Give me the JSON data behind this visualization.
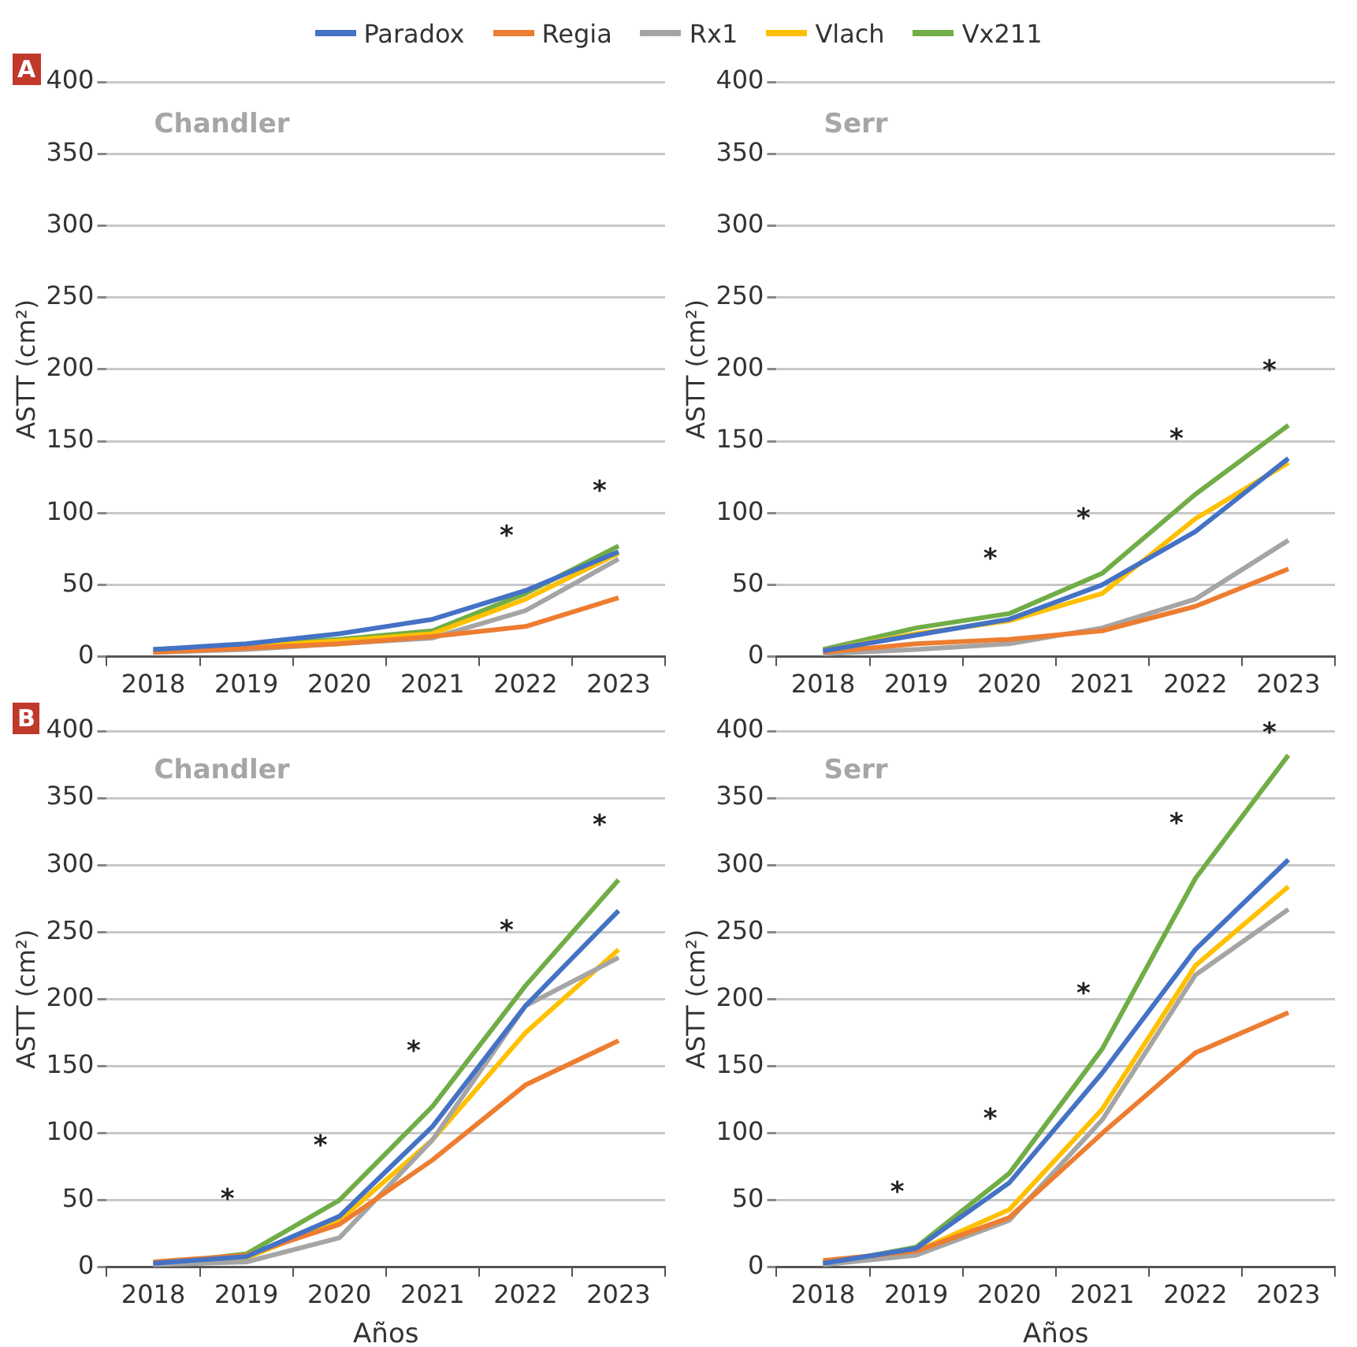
{
  "chart_data": [
    {
      "type": "line",
      "title": "Chandler",
      "subtitle": "A",
      "ylabel": "ASTT (cm²)",
      "categories": [
        "2018",
        "2019",
        "2020",
        "2021",
        "2022",
        "2023"
      ],
      "ylim": [
        0,
        400
      ],
      "yticks": [
        0,
        50,
        100,
        150,
        200,
        250,
        300,
        350,
        400
      ],
      "grid": "y",
      "legend": "top",
      "marker": "none",
      "annotations": [
        "*",
        "*"
      ],
      "series": [
        {
          "name": "Paradox",
          "color": "#4472c4",
          "values": [
            5,
            9,
            16,
            26,
            46,
            73
          ]
        },
        {
          "name": "Regia",
          "color": "#ed7d31",
          "values": [
            3,
            6,
            9,
            14,
            21,
            41
          ]
        },
        {
          "name": "Rx1",
          "color": "#a5a5a5",
          "values": [
            3,
            5,
            9,
            13,
            32,
            68
          ]
        },
        {
          "name": "Vlach",
          "color": "#ffc000",
          "values": [
            4,
            7,
            11,
            16,
            40,
            72
          ]
        },
        {
          "name": "Vx211",
          "color": "#70ad47",
          "values": [
            5,
            8,
            12,
            18,
            44,
            77
          ]
        }
      ]
    },
    {
      "type": "line",
      "title": "Serr",
      "ylabel": "ASTT (cm²)",
      "categories": [
        "2018",
        "2019",
        "2020",
        "2021",
        "2022",
        "2023"
      ],
      "ylim": [
        0,
        400
      ],
      "yticks": [
        0,
        50,
        100,
        150,
        200,
        250,
        300,
        350,
        400
      ],
      "grid": "y",
      "marker": "none",
      "annotations": [
        "*",
        "*",
        "*",
        "*"
      ],
      "series": [
        {
          "color": "#4472c4",
          "values": [
            4,
            15,
            26,
            50,
            87,
            138
          ]
        },
        {
          "color": "#ed7d31",
          "values": [
            3,
            9,
            12,
            18,
            35,
            61
          ]
        },
        {
          "color": "#a5a5a5",
          "values": [
            2,
            5,
            9,
            20,
            40,
            81
          ]
        },
        {
          "color": "#ffc000",
          "values": [
            4,
            16,
            25,
            44,
            96,
            135
          ]
        },
        {
          "color": "#70ad47",
          "values": [
            5,
            20,
            30,
            58,
            113,
            161
          ]
        }
      ]
    },
    {
      "type": "line",
      "title": "Chandler",
      "subtitle": "B",
      "xlabel": "Años",
      "ylabel": "ASTT (cm²)",
      "categories": [
        "2018",
        "2019",
        "2020",
        "2021",
        "2022",
        "2023"
      ],
      "ylim": [
        0,
        400
      ],
      "yticks": [
        0,
        50,
        100,
        150,
        200,
        250,
        300,
        350,
        400
      ],
      "grid": "y",
      "marker": "none",
      "annotations": [
        "*",
        "*",
        "*",
        "*",
        "*"
      ],
      "series": [
        {
          "color": "#4472c4",
          "values": [
            3,
            8,
            38,
            105,
            195,
            266
          ]
        },
        {
          "color": "#ed7d31",
          "values": [
            4,
            9,
            32,
            80,
            136,
            169
          ]
        },
        {
          "color": "#a5a5a5",
          "values": [
            2,
            4,
            22,
            95,
            195,
            231
          ]
        },
        {
          "color": "#ffc000",
          "values": [
            3,
            7,
            35,
            95,
            175,
            237
          ]
        },
        {
          "color": "#70ad47",
          "values": [
            2,
            10,
            50,
            120,
            210,
            289
          ]
        }
      ]
    },
    {
      "type": "line",
      "title": "Serr",
      "xlabel": "Años",
      "ylabel": "ASTT (cm²)",
      "categories": [
        "2018",
        "2019",
        "2020",
        "2021",
        "2022",
        "2023"
      ],
      "ylim": [
        0,
        400
      ],
      "yticks": [
        0,
        50,
        100,
        150,
        200,
        250,
        300,
        350,
        400
      ],
      "grid": "y",
      "marker": "none",
      "annotations": [
        "*",
        "*",
        "*",
        "*",
        "*"
      ],
      "series": [
        {
          "color": "#4472c4",
          "values": [
            3,
            14,
            63,
            145,
            237,
            304
          ]
        },
        {
          "color": "#ed7d31",
          "values": [
            5,
            12,
            37,
            100,
            160,
            190
          ]
        },
        {
          "color": "#a5a5a5",
          "values": [
            2,
            9,
            35,
            110,
            218,
            267
          ]
        },
        {
          "color": "#ffc000",
          "values": [
            2,
            12,
            43,
            118,
            225,
            284
          ]
        },
        {
          "color": "#70ad47",
          "values": [
            2,
            15,
            70,
            163,
            290,
            382
          ]
        }
      ]
    }
  ]
}
